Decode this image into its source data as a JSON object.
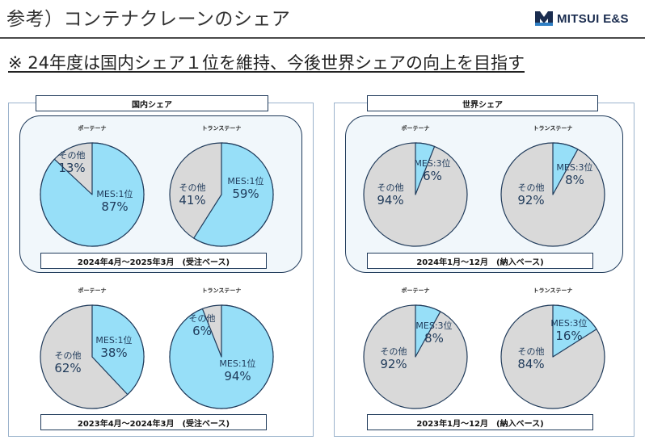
{
  "header": {
    "title": "参考）コンテナクレーンのシェア",
    "logo_text": "MITSUI E&S",
    "subtitle": "※ 24年度は国内シェア１位を維持、今後世界シェアの向上を目指す"
  },
  "colors": {
    "mes": "#97dff8",
    "other": "#d9d9d9",
    "stroke": "#1f3a5a"
  },
  "domestic": {
    "title": "国内シェア",
    "period_top": "2024年4月～2025年3月　(受注ベース)",
    "period_bottom": "2023年4月～2024年3月　(受注ベース)"
  },
  "world": {
    "title": "世界シェア",
    "period_top": "2024年1月～12月　(納入ベース)",
    "period_bottom": "2023年1月～12月　(納入ベース)"
  },
  "chart_data": [
    {
      "type": "pie",
      "title": "ポーテーナ",
      "labels": [
        "MES:1位",
        "その他"
      ],
      "values": [
        87,
        13
      ],
      "value_labels": [
        "87%",
        "13%"
      ]
    },
    {
      "type": "pie",
      "title": "トランステーナ",
      "labels": [
        "MES:1位",
        "その他"
      ],
      "values": [
        59,
        41
      ],
      "value_labels": [
        "59%",
        "41%"
      ]
    },
    {
      "type": "pie",
      "title": "ポーテーナ",
      "labels": [
        "MES:1位",
        "その他"
      ],
      "values": [
        38,
        62
      ],
      "value_labels": [
        "38%",
        "62%"
      ]
    },
    {
      "type": "pie",
      "title": "トランステーナ",
      "labels": [
        "MES:1位",
        "その他"
      ],
      "values": [
        94,
        6
      ],
      "value_labels": [
        "94%",
        "6%"
      ]
    },
    {
      "type": "pie",
      "title": "ポーテーナ",
      "labels": [
        "MES:3位",
        "その他"
      ],
      "values": [
        6,
        94
      ],
      "value_labels": [
        "6%",
        "94%"
      ]
    },
    {
      "type": "pie",
      "title": "トランステーナ",
      "labels": [
        "MES:3位",
        "その他"
      ],
      "values": [
        8,
        92
      ],
      "value_labels": [
        "8%",
        "92%"
      ]
    },
    {
      "type": "pie",
      "title": "ポーテーナ",
      "labels": [
        "MES:3位",
        "その他"
      ],
      "values": [
        8,
        92
      ],
      "value_labels": [
        "8%",
        "92%"
      ]
    },
    {
      "type": "pie",
      "title": "トランステーナ",
      "labels": [
        "MES:3位",
        "その他"
      ],
      "values": [
        16,
        84
      ],
      "value_labels": [
        "16%",
        "84%"
      ]
    }
  ]
}
